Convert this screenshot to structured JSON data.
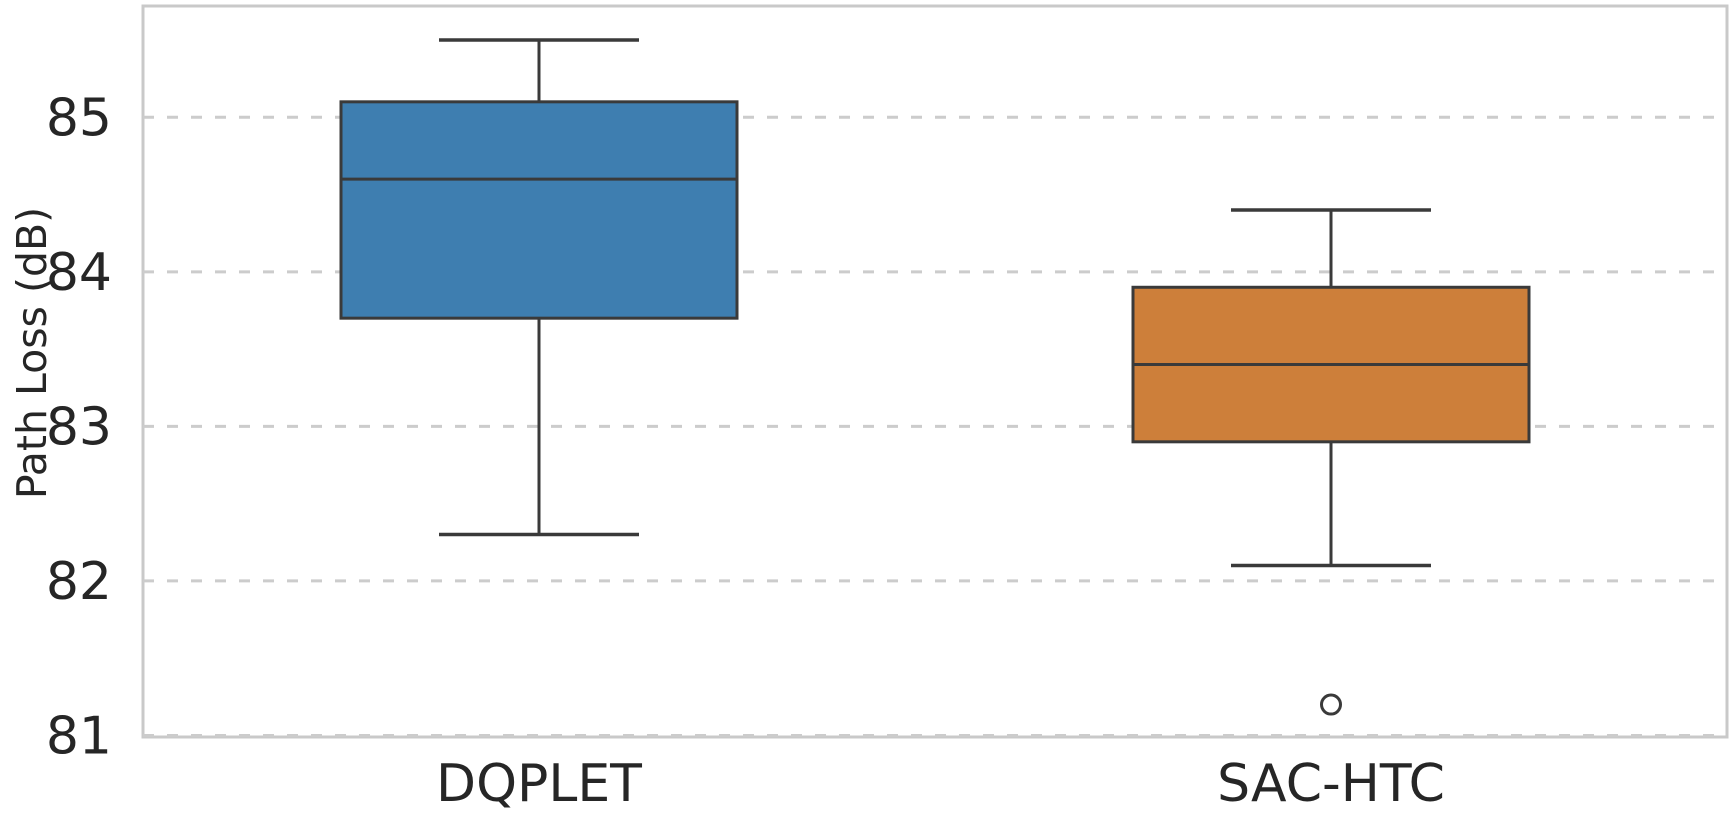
{
  "chart_data": {
    "type": "box",
    "title": "",
    "xlabel": "",
    "ylabel": "Path Loss (dB)",
    "categories": [
      "DQPLET",
      "SAC-HTC"
    ],
    "series": [
      {
        "name": "DQPLET",
        "fill_color": "#3E7EB0",
        "whisker_low": 82.3,
        "q1": 83.7,
        "median": 84.6,
        "q3": 85.1,
        "whisker_high": 85.5,
        "outliers": []
      },
      {
        "name": "SAC-HTC",
        "fill_color": "#CD7F3A",
        "whisker_low": 82.1,
        "q1": 82.9,
        "median": 83.4,
        "q3": 83.9,
        "whisker_high": 84.4,
        "outliers": [
          81.2
        ]
      }
    ],
    "yticks": [
      81,
      82,
      83,
      84,
      85
    ],
    "ylim": [
      80.99,
      85.72
    ],
    "grid": {
      "axis": "y",
      "line_style": "dashed",
      "color": "#cccccc"
    },
    "legend": null,
    "style": {
      "edge_color": "#3A3A3A",
      "spine_color": "#C9C9C9",
      "text_color": "#262626",
      "background": "#ffffff"
    }
  }
}
